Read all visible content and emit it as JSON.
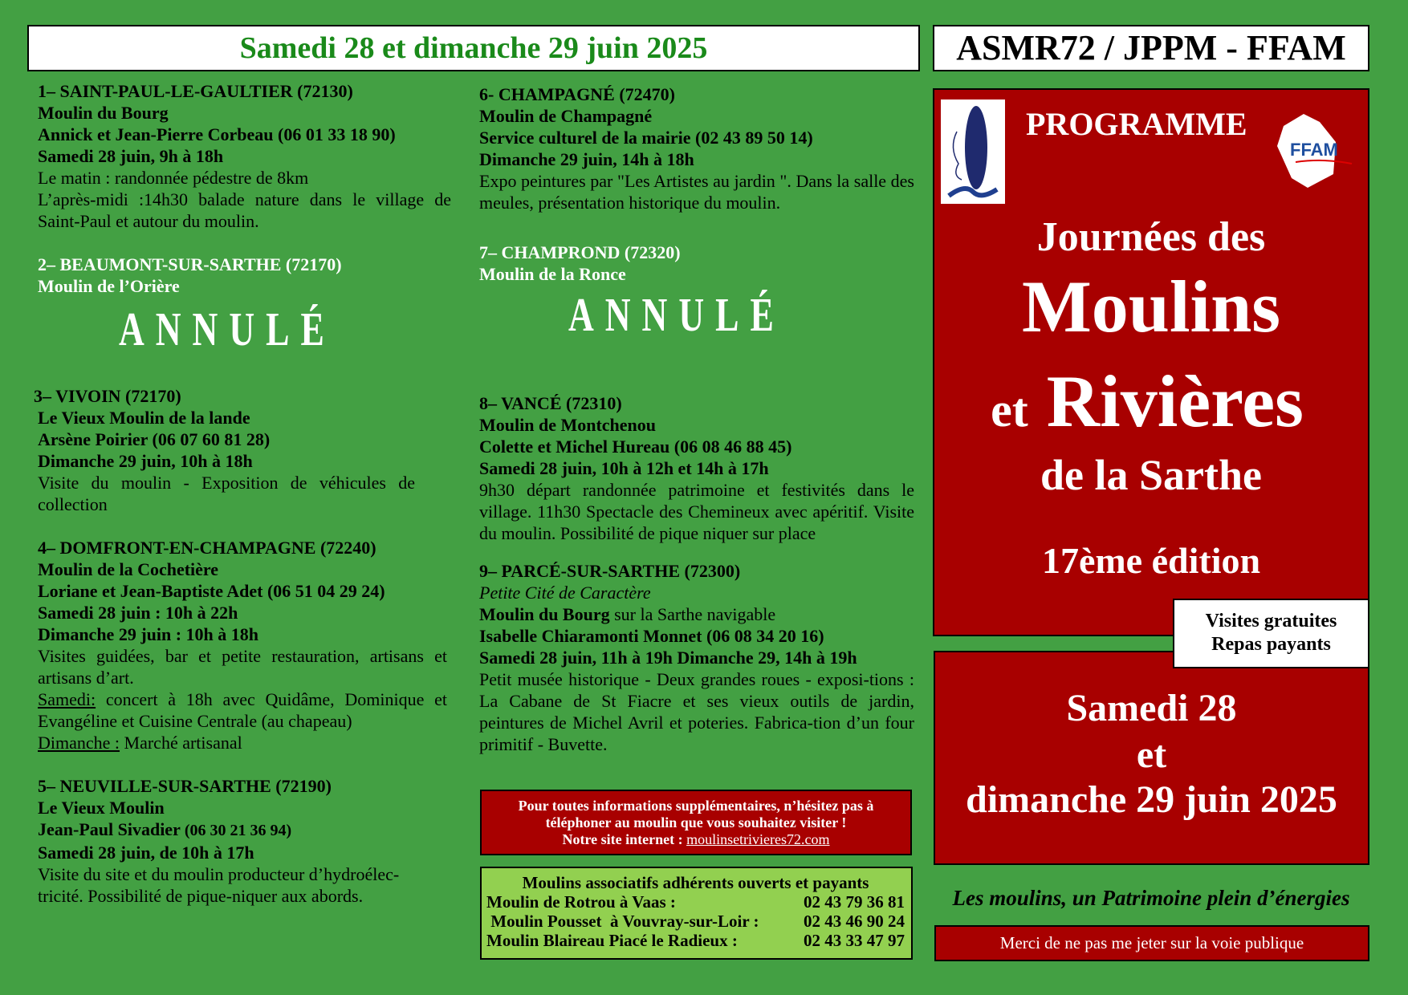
{
  "header": {
    "date_title": "Samedi 28 et dimanche 29 juin 2025",
    "org_title": "ASMR72 / JPPM - FFAM"
  },
  "colors": {
    "background": "#43a043",
    "red": "#a80000",
    "date_green": "#1a8a1a",
    "light_green": "#92d050"
  },
  "sections": [
    {
      "title": "1– SAINT-PAUL-LE-GAULTIER (72130)",
      "lines": [
        "Moulin du Bourg",
        "Annick et Jean-Pierre Corbeau (06 01 33 18 90)",
        "Samedi 28 juin, 9h à 18h"
      ],
      "text1": "Le matin : randonnée pédestre de 8km",
      "text2": "L’après-midi :14h30 balade nature dans le village de Saint-Paul et autour du moulin."
    },
    {
      "title": "2– BEAUMONT-SUR-SARTHE  (72170)",
      "lines": [
        "Moulin de l’Orière"
      ],
      "status": "ANNULÉ"
    },
    {
      "title": "3–  VIVOIN (72170)",
      "lines": [
        "Le Vieux Moulin de la lande",
        "Arsène Poirier (06 07 60 81 28)",
        "Dimanche 29 juin, 10h à 18h"
      ],
      "text": "Visite du moulin - Exposition de véhicules de collection"
    },
    {
      "title": "4–  DOMFRONT-EN-CHAMPAGNE (72240)",
      "lines": [
        "Moulin de la Cochetière",
        "Loriane et Jean-Baptiste Adet (06 51 04 29 24)",
        "Samedi 28 juin : 10h à 22h",
        "Dimanche 29 juin : 10h à 18h"
      ],
      "text": "Visites guidées, bar et petite restauration, artisans et artisans d’art.",
      "sat_label": "Samedi:",
      "sat_text": " concert à 18h avec Quidâme, Dominique et Evangéline et Cuisine Centrale (au chapeau)",
      "sun_label": "Dimanche :",
      "sun_text": " Marché artisanal"
    },
    {
      "title": "5– NEUVILLE-SUR-SARTHE (72190)",
      "lines": [
        "Le Vieux Moulin"
      ],
      "contact_name": "Jean-Paul Sivadier",
      "contact_phone": " (06 30 21 36 94)",
      "date": "Samedi 28 juin, de 10h à 17h",
      "text": "Visite du site et du moulin producteur d’hydroélec-",
      "text2": " tricité. Possibilité de pique-niquer aux abords."
    },
    {
      "title": "6-  CHAMPAGNÉ  (72470)",
      "lines": [
        "Moulin de Champagné",
        "Service culturel de la mairie (02 43 89 50 14)",
        "Dimanche 29 juin,  14h à 18h"
      ],
      "text": "Expo peintures par \"Les Artistes au jardin \". Dans la salle des meules, présentation historique du moulin."
    },
    {
      "title": "7–  CHAMPROND (72320)",
      "lines": [
        "Moulin de la Ronce"
      ],
      "status": "ANNULÉ"
    },
    {
      "title": "8– VANCÉ (72310)",
      "lines": [
        "Moulin de Montchenou",
        "Colette et Michel Hureau (06 08 46 88 45)",
        "Samedi 28 juin, 10h à 12h et 14h à 17h"
      ],
      "text": "9h30 départ randonnée patrimoine et festivités dans le village. 11h30 Spectacle des Chemineux avec apéritif. Visite du moulin. Possibilité de pique niquer sur place"
    },
    {
      "title": "9– PARCÉ-SUR-SARTHE (72300)",
      "subtitle": "Petite Cité de Caractère",
      "mill": "Moulin du Bourg",
      "mill_suffix": " sur la Sarthe navigable",
      "lines": [
        "Isabelle Chiaramonti Monnet (06 08 34 20 16)",
        "Samedi 28 juin, 11h à 19h Dimanche 29, 14h à 19h"
      ],
      "text": "Petit musée historique - Deux grandes roues - exposi-tions : La Cabane de St Fiacre et ses vieux outils de jardin, peintures de Michel Avril et poteries. Fabrica-tion d’un four primitif - Buvette."
    }
  ],
  "info_box": {
    "line1": "Pour toutes informations supplémentaires, n’hésitez pas à",
    "line2": "téléphoner au moulin que vous souhaitez visiter !",
    "line3": "Notre site internet : ",
    "link": "moulinsetrivieres72.com"
  },
  "members_box": {
    "title": "Moulins associatifs adhérents ouverts et payants",
    "rows": [
      {
        "name": "Moulin de Rotrou à Vaas :",
        "phone": "02 43 79 36 81"
      },
      {
        "name": " Moulin Pousset  à Vouvray-sur-Loir :",
        "phone": "02 43 46 90 24"
      },
      {
        "name": "Moulin Blaireau Piacé le Radieux :",
        "phone": "02 43 33 47 97"
      }
    ]
  },
  "poster": {
    "programme": "PROGRAMME",
    "journees": "Journées des",
    "moulins": "Moulins",
    "et": "et",
    "rivieres": "Rivières",
    "sarthe": "de la Sarthe",
    "edition": "17ème édition",
    "logo_left": "ASMR Sarthe",
    "logo_right": "FFAM"
  },
  "bubble": {
    "line1": "Visites gratuites",
    "line2": "Repas payants"
  },
  "dates_box": {
    "line1": "Samedi 28",
    "line2": "et",
    "line3": "dimanche 29 juin 2025"
  },
  "tagline": "Les moulins, un Patrimoine plein d’énergies",
  "footer_note": "Merci de ne pas me jeter sur la voie publique"
}
